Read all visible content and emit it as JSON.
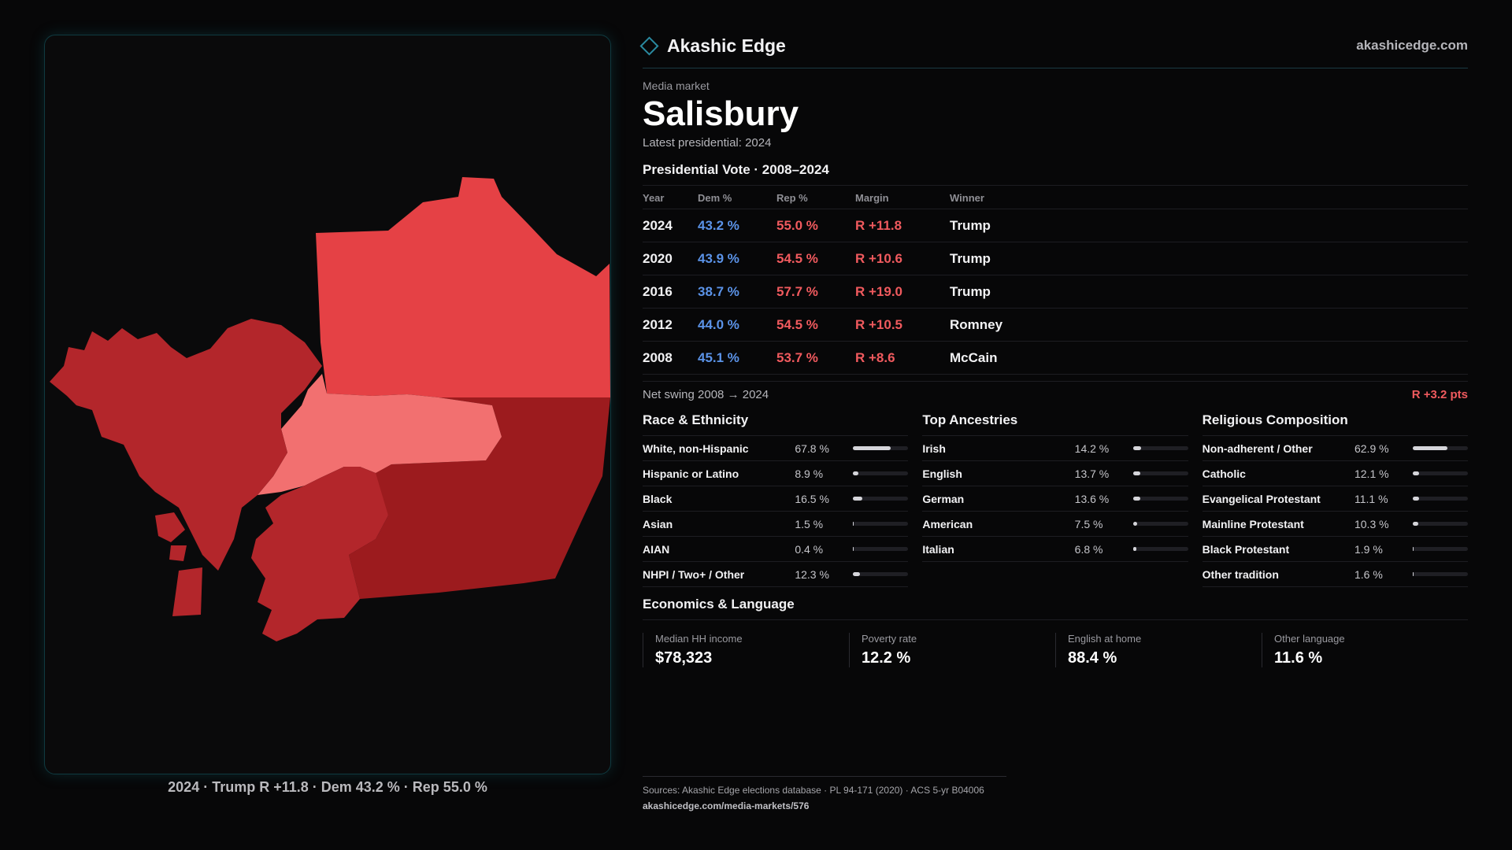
{
  "brand": {
    "name": "Akashic Edge",
    "site": "akashicedge.com"
  },
  "market": {
    "eyebrow": "Media market",
    "name": "Salisbury",
    "latest": "Latest presidential: 2024"
  },
  "presidential": {
    "title": "Presidential Vote · 2008–2024",
    "headers": [
      "Year",
      "Dem %",
      "Rep %",
      "Margin",
      "Winner"
    ],
    "rows": [
      {
        "year": "2024",
        "dem": "43.2 %",
        "rep": "55.0 %",
        "margin": "R +11.8",
        "winner": "Trump"
      },
      {
        "year": "2020",
        "dem": "43.9 %",
        "rep": "54.5 %",
        "margin": "R +10.6",
        "winner": "Trump"
      },
      {
        "year": "2016",
        "dem": "38.7 %",
        "rep": "57.7 %",
        "margin": "R +19.0",
        "winner": "Trump"
      },
      {
        "year": "2012",
        "dem": "44.0 %",
        "rep": "54.5 %",
        "margin": "R +10.5",
        "winner": "Romney"
      },
      {
        "year": "2008",
        "dem": "45.1 %",
        "rep": "53.7 %",
        "margin": "R +8.6",
        "winner": "McCain"
      }
    ],
    "swing_label": "Net swing 2008 → 2024",
    "swing_value": "R +3.2 pts"
  },
  "race": {
    "title": "Race & Ethnicity",
    "rows": [
      {
        "label": "White, non-Hispanic",
        "value": "67.8 %",
        "pct": 67.8
      },
      {
        "label": "Hispanic or Latino",
        "value": "8.9 %",
        "pct": 8.9
      },
      {
        "label": "Black",
        "value": "16.5 %",
        "pct": 16.5
      },
      {
        "label": "Asian",
        "value": "1.5 %",
        "pct": 1.5
      },
      {
        "label": "AIAN",
        "value": "0.4 %",
        "pct": 0.4
      },
      {
        "label": "NHPI / Two+ / Other",
        "value": "12.3 %",
        "pct": 12.3
      }
    ]
  },
  "ancestry": {
    "title": "Top Ancestries",
    "rows": [
      {
        "label": "Irish",
        "value": "14.2 %",
        "pct": 14.2
      },
      {
        "label": "English",
        "value": "13.7 %",
        "pct": 13.7
      },
      {
        "label": "German",
        "value": "13.6 %",
        "pct": 13.6
      },
      {
        "label": "American",
        "value": "7.5 %",
        "pct": 7.5
      },
      {
        "label": "Italian",
        "value": "6.8 %",
        "pct": 6.8
      }
    ]
  },
  "religion": {
    "title": "Religious Composition",
    "rows": [
      {
        "label": "Non-adherent / Other",
        "value": "62.9 %",
        "pct": 62.9
      },
      {
        "label": "Catholic",
        "value": "12.1 %",
        "pct": 12.1
      },
      {
        "label": "Evangelical Protestant",
        "value": "11.1 %",
        "pct": 11.1
      },
      {
        "label": "Mainline Protestant",
        "value": "10.3 %",
        "pct": 10.3
      },
      {
        "label": "Black Protestant",
        "value": "1.9 %",
        "pct": 1.9
      },
      {
        "label": "Other tradition",
        "value": "1.6 %",
        "pct": 1.6
      }
    ]
  },
  "economics": {
    "title": "Economics & Language",
    "cards": [
      {
        "label": "Median HH income",
        "value": "$78,323"
      },
      {
        "label": "Poverty rate",
        "value": "12.2 %"
      },
      {
        "label": "English at home",
        "value": "88.4 %"
      },
      {
        "label": "Other language",
        "value": "11.6 %"
      }
    ]
  },
  "map": {
    "caption": "2024 · Trump R +11.8 · Dem 43.2 % · Rep 55.0 %",
    "colors": {
      "dark": "#9c1b1e",
      "mid": "#b3262b",
      "bright": "#e54145",
      "light": "#f27070"
    }
  },
  "sources": {
    "text": "Sources: Akashic Edge elections database · PL 94-171 (2020) · ACS 5-yr B04006",
    "url": "akashicedge.com/media-markets/576"
  }
}
